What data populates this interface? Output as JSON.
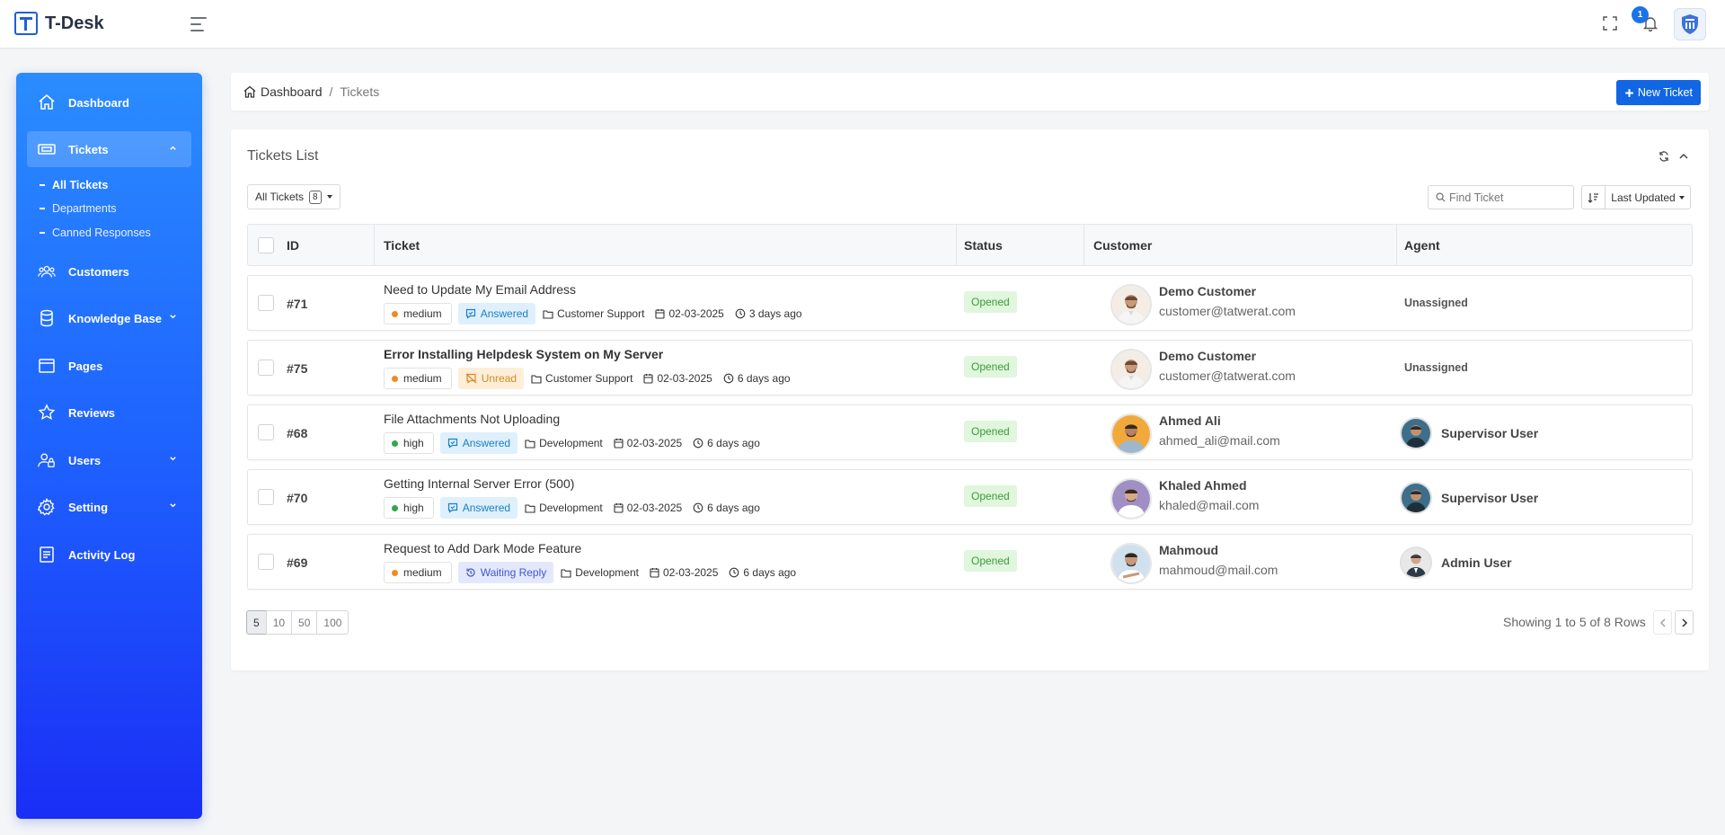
{
  "app": {
    "name": "T-Desk",
    "notification_count": "1"
  },
  "sidebar": {
    "items": [
      {
        "label": "Dashboard"
      },
      {
        "label": "Tickets"
      },
      {
        "label": "Customers"
      },
      {
        "label": "Knowledge Base"
      },
      {
        "label": "Pages"
      },
      {
        "label": "Reviews"
      },
      {
        "label": "Users"
      },
      {
        "label": "Setting"
      },
      {
        "label": "Activity Log"
      }
    ],
    "tickets_sub": [
      {
        "label": "All Tickets"
      },
      {
        "label": "Departments"
      },
      {
        "label": "Canned Responses"
      }
    ]
  },
  "breadcrumb": {
    "home": "Dashboard",
    "separator": "/",
    "current": "Tickets"
  },
  "new_ticket_label": "New Ticket",
  "card": {
    "title": "Tickets List",
    "filter_label": "All Tickets",
    "filter_count": "8",
    "search_placeholder": "Find Ticket",
    "sort_label": "Last Updated"
  },
  "table": {
    "headers": [
      "ID",
      "Ticket",
      "Status",
      "Customer",
      "Agent"
    ],
    "rows": [
      {
        "id": "#71",
        "title": "Need to Update My Email Address",
        "priority": "medium",
        "reply": "Answered",
        "department": "Customer Support",
        "date": "02-03-2025",
        "ago": "3 days ago",
        "status": "Opened",
        "customer_name": "Demo Customer",
        "customer_email": "customer@tatwerat.com",
        "agent": "Unassigned"
      },
      {
        "id": "#75",
        "title": "Error Installing Helpdesk System on My Server",
        "priority": "medium",
        "reply": "Unread",
        "department": "Customer Support",
        "date": "02-03-2025",
        "ago": "6 days ago",
        "status": "Opened",
        "customer_name": "Demo Customer",
        "customer_email": "customer@tatwerat.com",
        "agent": "Unassigned"
      },
      {
        "id": "#68",
        "title": "File Attachments Not Uploading",
        "priority": "high",
        "reply": "Answered",
        "department": "Development",
        "date": "02-03-2025",
        "ago": "6 days ago",
        "status": "Opened",
        "customer_name": "Ahmed Ali",
        "customer_email": "ahmed_ali@mail.com",
        "agent": "Supervisor User"
      },
      {
        "id": "#70",
        "title": "Getting Internal Server Error (500)",
        "priority": "high",
        "reply": "Answered",
        "department": "Development",
        "date": "02-03-2025",
        "ago": "6 days ago",
        "status": "Opened",
        "customer_name": "Khaled Ahmed",
        "customer_email": "khaled@mail.com",
        "agent": "Supervisor User"
      },
      {
        "id": "#69",
        "title": "Request to Add Dark Mode Feature",
        "priority": "medium",
        "reply": "Waiting Reply",
        "department": "Development",
        "date": "02-03-2025",
        "ago": "6 days ago",
        "status": "Opened",
        "customer_name": "Mahmoud",
        "customer_email": "mahmoud@mail.com",
        "agent": "Admin User"
      }
    ]
  },
  "pagination": {
    "sizes": [
      "5",
      "10",
      "50",
      "100"
    ],
    "summary": "Showing 1 to 5 of 8 Rows"
  },
  "colors": {
    "accent": "#1066e3",
    "priority_medium": "#f08a24",
    "priority_high": "#2fa84f"
  }
}
